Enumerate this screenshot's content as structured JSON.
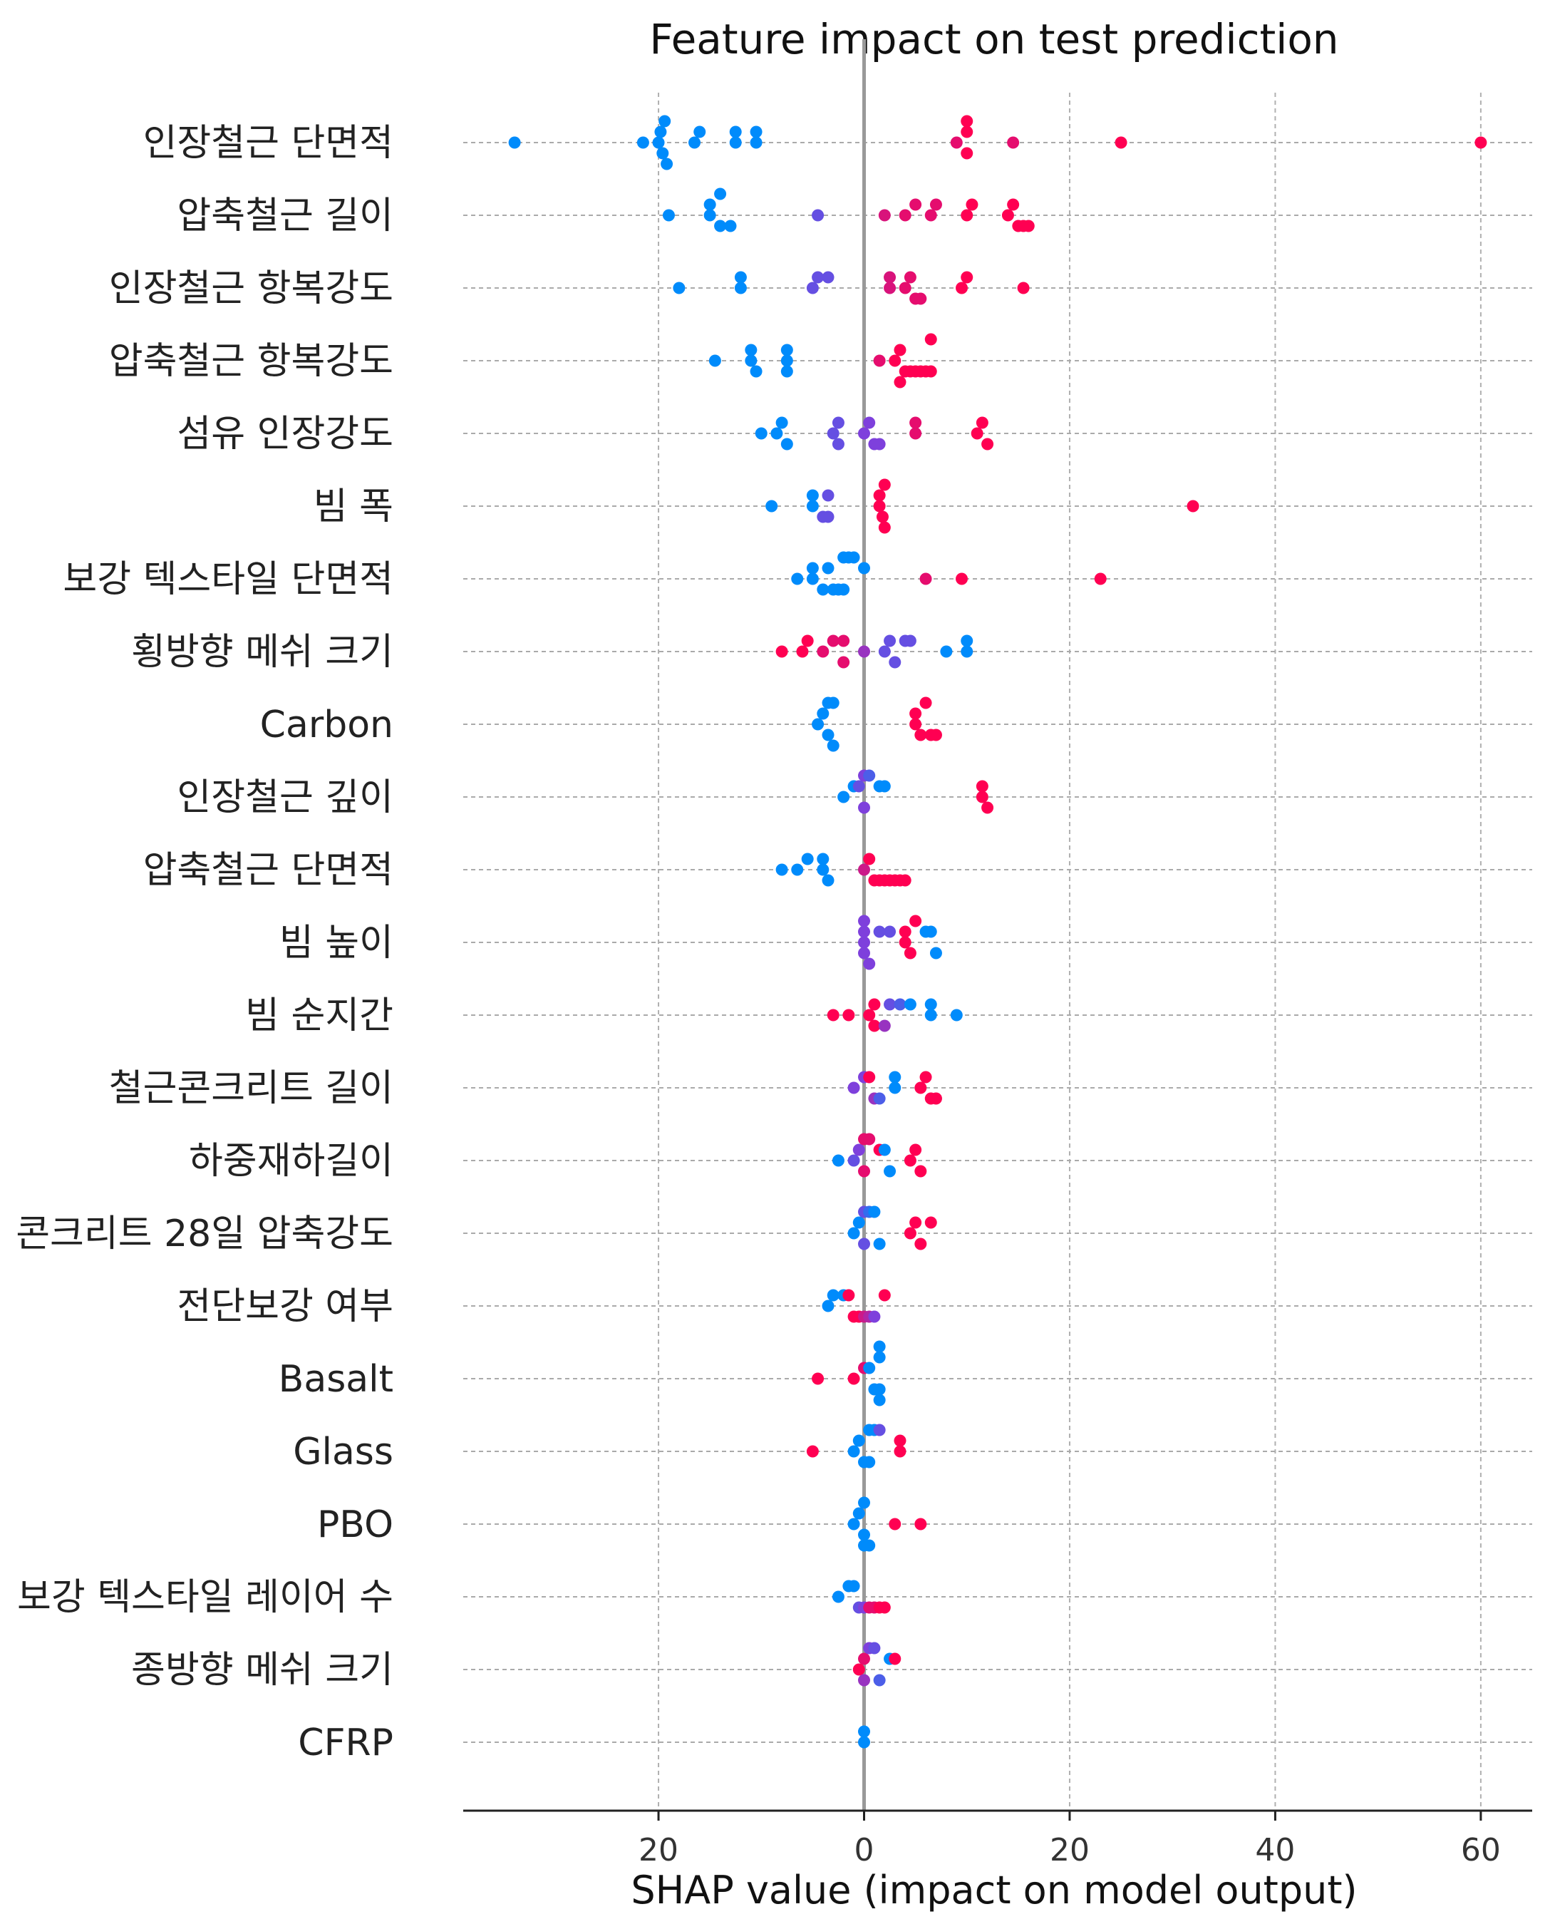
{
  "chart_data": {
    "type": "scatter",
    "title": "Feature impact on test prediction",
    "xlabel": "SHAP value (impact on model output)",
    "ylabel": "",
    "xlim": [
      -39,
      65
    ],
    "xticks": [
      {
        "value": -20,
        "label": "20"
      },
      {
        "value": 0,
        "label": "0"
      },
      {
        "value": 20,
        "label": "20"
      },
      {
        "value": 40,
        "label": "40"
      },
      {
        "value": 60,
        "label": "60"
      }
    ],
    "grid": "dashed horizontal row lines and vertical tick lines",
    "colors": {
      "low": "#008bfb",
      "high": "#ff0052",
      "zero_line": "#999999"
    },
    "features": [
      {
        "name": "인장철근 단면적",
        "points": [
          [
            -34,
            0
          ],
          [
            -21.5,
            0
          ],
          [
            -20,
            0
          ],
          [
            -19.8,
            0
          ],
          [
            -19.6,
            0
          ],
          [
            -19.4,
            0
          ],
          [
            -19.2,
            0
          ],
          [
            -16.5,
            0
          ],
          [
            -16,
            0
          ],
          [
            -12.5,
            0
          ],
          [
            -12.5,
            0
          ],
          [
            -10.5,
            0
          ],
          [
            -10.5,
            0
          ],
          [
            9,
            0.9
          ],
          [
            10,
            1
          ],
          [
            10,
            1
          ],
          [
            10,
            1
          ],
          [
            14.5,
            0.9
          ],
          [
            25,
            1
          ],
          [
            60,
            1
          ]
        ]
      },
      {
        "name": "압축철근 길이",
        "points": [
          [
            -19,
            0
          ],
          [
            -15,
            0
          ],
          [
            -15,
            0
          ],
          [
            -14,
            0
          ],
          [
            -14,
            0
          ],
          [
            -13,
            0
          ],
          [
            -4.5,
            0.4
          ],
          [
            2,
            0.85
          ],
          [
            4,
            0.9
          ],
          [
            5,
            0.9
          ],
          [
            6.5,
            0.9
          ],
          [
            7,
            0.9
          ],
          [
            10,
            1
          ],
          [
            10.5,
            1
          ],
          [
            14,
            1
          ],
          [
            14.5,
            1
          ],
          [
            15,
            1
          ],
          [
            15.5,
            1
          ],
          [
            16,
            1
          ]
        ]
      },
      {
        "name": "인장철근 항복강도",
        "points": [
          [
            -18,
            0
          ],
          [
            -12,
            0
          ],
          [
            -12,
            0
          ],
          [
            -5,
            0.4
          ],
          [
            -4.5,
            0.4
          ],
          [
            -3.5,
            0.4
          ],
          [
            2.5,
            0.85
          ],
          [
            2.5,
            0.85
          ],
          [
            4,
            0.9
          ],
          [
            4.5,
            0.9
          ],
          [
            5,
            0.9
          ],
          [
            5.5,
            0.9
          ],
          [
            9.5,
            1
          ],
          [
            10,
            1
          ],
          [
            15.5,
            1
          ]
        ]
      },
      {
        "name": "압축철근 항복강도",
        "points": [
          [
            -14.5,
            0
          ],
          [
            -11,
            0
          ],
          [
            -11,
            0
          ],
          [
            -10.5,
            0
          ],
          [
            -7.5,
            0
          ],
          [
            -7.5,
            0
          ],
          [
            -7.5,
            0
          ],
          [
            1.5,
            0.9
          ],
          [
            3,
            1
          ],
          [
            3.5,
            1
          ],
          [
            4,
            1
          ],
          [
            4.5,
            1
          ],
          [
            5,
            1
          ],
          [
            5.5,
            1
          ],
          [
            6,
            1
          ],
          [
            6.5,
            1
          ],
          [
            6.5,
            1
          ],
          [
            3.5,
            1
          ]
        ]
      },
      {
        "name": "섬유 인장강도",
        "points": [
          [
            -10,
            0
          ],
          [
            -8.5,
            0
          ],
          [
            -8,
            0
          ],
          [
            -7.5,
            0
          ],
          [
            -3,
            0.4
          ],
          [
            -2.5,
            0.4
          ],
          [
            -2.5,
            0.4
          ],
          [
            0,
            0.5
          ],
          [
            0.5,
            0.5
          ],
          [
            1,
            0.5
          ],
          [
            1.5,
            0.5
          ],
          [
            5,
            0.9
          ],
          [
            5,
            0.9
          ],
          [
            11,
            1
          ],
          [
            11.5,
            1
          ],
          [
            12,
            1
          ]
        ]
      },
      {
        "name": "빔 폭",
        "points": [
          [
            -9,
            0
          ],
          [
            -5,
            0
          ],
          [
            -5,
            0
          ],
          [
            -4,
            0.4
          ],
          [
            -3.5,
            0.4
          ],
          [
            -3.5,
            0.4
          ],
          [
            1.5,
            1
          ],
          [
            1.5,
            1
          ],
          [
            1.8,
            1
          ],
          [
            2,
            1
          ],
          [
            2,
            1
          ],
          [
            32,
            1
          ]
        ]
      },
      {
        "name": "보강 텍스타일 단면적",
        "points": [
          [
            -6.5,
            0
          ],
          [
            -5,
            0
          ],
          [
            -5,
            0
          ],
          [
            -4,
            0
          ],
          [
            -3.5,
            0
          ],
          [
            -3,
            0
          ],
          [
            -2.5,
            0
          ],
          [
            -2,
            0
          ],
          [
            -2,
            0
          ],
          [
            -1.5,
            0
          ],
          [
            -1,
            0
          ],
          [
            0,
            0
          ],
          [
            6,
            0.9
          ],
          [
            9.5,
            1
          ],
          [
            23,
            1
          ]
        ]
      },
      {
        "name": "횡방향 메쉬 크기",
        "points": [
          [
            -8,
            1
          ],
          [
            -6,
            1
          ],
          [
            -5.5,
            1
          ],
          [
            -4,
            0.9
          ],
          [
            -3,
            0.9
          ],
          [
            -2,
            0.9
          ],
          [
            -2,
            0.9
          ],
          [
            0,
            0.6
          ],
          [
            2,
            0.4
          ],
          [
            2.5,
            0.4
          ],
          [
            3,
            0.4
          ],
          [
            4,
            0.4
          ],
          [
            4.5,
            0.4
          ],
          [
            8,
            0
          ],
          [
            10,
            0
          ],
          [
            10,
            0
          ]
        ]
      },
      {
        "name": "Carbon",
        "points": [
          [
            -4.5,
            0
          ],
          [
            -4,
            0
          ],
          [
            -3.5,
            0
          ],
          [
            -3.5,
            0
          ],
          [
            -3,
            0
          ],
          [
            -3,
            0
          ],
          [
            5,
            1
          ],
          [
            5,
            1
          ],
          [
            5.5,
            1
          ],
          [
            6,
            1
          ],
          [
            6.5,
            1
          ],
          [
            7,
            1
          ]
        ]
      },
      {
        "name": "인장철근 깊이",
        "points": [
          [
            -2,
            0
          ],
          [
            -1,
            0
          ],
          [
            -0.5,
            0.4
          ],
          [
            0,
            0.5
          ],
          [
            0,
            0.5
          ],
          [
            0.5,
            0.3
          ],
          [
            1.5,
            0
          ],
          [
            2,
            0
          ],
          [
            11.5,
            1
          ],
          [
            11.5,
            1
          ],
          [
            12,
            1
          ]
        ]
      },
      {
        "name": "압축철근 단면적",
        "points": [
          [
            -8,
            0
          ],
          [
            -6.5,
            0
          ],
          [
            -5.5,
            0
          ],
          [
            -4,
            0
          ],
          [
            -4,
            0
          ],
          [
            -3.5,
            0
          ],
          [
            0,
            0.8
          ],
          [
            0.5,
            1
          ],
          [
            1,
            1
          ],
          [
            1.5,
            1
          ],
          [
            2,
            1
          ],
          [
            2.5,
            1
          ],
          [
            3,
            1
          ],
          [
            3.5,
            1
          ],
          [
            4,
            1
          ]
        ]
      },
      {
        "name": "빔 높이",
        "points": [
          [
            0,
            0.5
          ],
          [
            0,
            0.5
          ],
          [
            0,
            0.5
          ],
          [
            0,
            0.5
          ],
          [
            0.5,
            0.5
          ],
          [
            1.5,
            0.4
          ],
          [
            2.5,
            0.4
          ],
          [
            4,
            1
          ],
          [
            4,
            1
          ],
          [
            4.5,
            1
          ],
          [
            5,
            1
          ],
          [
            6,
            0
          ],
          [
            6.5,
            0
          ],
          [
            7,
            0
          ]
        ]
      },
      {
        "name": "빔 순지간",
        "points": [
          [
            -3,
            1
          ],
          [
            -1.5,
            1
          ],
          [
            0.5,
            1
          ],
          [
            1,
            1
          ],
          [
            1,
            1
          ],
          [
            2,
            0.6
          ],
          [
            2.5,
            0.4
          ],
          [
            3.5,
            0.3
          ],
          [
            4.5,
            0
          ],
          [
            6.5,
            0
          ],
          [
            6.5,
            0
          ],
          [
            9,
            0
          ]
        ]
      },
      {
        "name": "철근콘크리트 길이",
        "points": [
          [
            -1,
            0.5
          ],
          [
            0,
            0.5
          ],
          [
            0.5,
            1
          ],
          [
            1,
            0.6
          ],
          [
            1.5,
            0.3
          ],
          [
            3,
            0
          ],
          [
            3,
            0
          ],
          [
            5.5,
            1
          ],
          [
            6,
            1
          ],
          [
            6.5,
            1
          ],
          [
            7,
            1
          ]
        ]
      },
      {
        "name": "하중재하길이",
        "points": [
          [
            -2.5,
            0
          ],
          [
            -1,
            0.4
          ],
          [
            -0.5,
            0.5
          ],
          [
            0,
            0.9
          ],
          [
            0,
            0.9
          ],
          [
            0.5,
            0.9
          ],
          [
            1.5,
            1
          ],
          [
            2,
            0
          ],
          [
            2.5,
            0
          ],
          [
            4.5,
            1
          ],
          [
            5,
            1
          ],
          [
            5.5,
            1
          ]
        ]
      },
      {
        "name": "콘크리트 28일 압축강도",
        "points": [
          [
            -1,
            0
          ],
          [
            -0.5,
            0
          ],
          [
            0,
            0.4
          ],
          [
            0,
            0.4
          ],
          [
            0.5,
            0.2
          ],
          [
            1,
            0
          ],
          [
            1.5,
            0
          ],
          [
            4.5,
            1
          ],
          [
            5,
            1
          ],
          [
            5.5,
            1
          ],
          [
            6.5,
            1
          ]
        ]
      },
      {
        "name": "전단보강 여부",
        "points": [
          [
            -3.5,
            0
          ],
          [
            -3,
            0
          ],
          [
            -2,
            0
          ],
          [
            -1.5,
            1
          ],
          [
            -1,
            1
          ],
          [
            -0.5,
            1
          ],
          [
            0,
            0.8
          ],
          [
            0.5,
            0.7
          ],
          [
            1,
            0.5
          ],
          [
            2,
            1
          ]
        ]
      },
      {
        "name": "Basalt",
        "points": [
          [
            -4.5,
            1
          ],
          [
            -1,
            1
          ],
          [
            0,
            0.9
          ],
          [
            0.5,
            0
          ],
          [
            1,
            0
          ],
          [
            1.5,
            0
          ],
          [
            1.5,
            0
          ],
          [
            1.5,
            0
          ],
          [
            1.5,
            0
          ]
        ]
      },
      {
        "name": "Glass",
        "points": [
          [
            -5,
            1
          ],
          [
            -1,
            0
          ],
          [
            -0.5,
            0
          ],
          [
            0,
            0
          ],
          [
            0.5,
            0
          ],
          [
            0.5,
            0
          ],
          [
            1,
            0
          ],
          [
            1.5,
            0.4
          ],
          [
            3.5,
            1
          ],
          [
            3.5,
            1
          ]
        ]
      },
      {
        "name": "PBO",
        "points": [
          [
            -1,
            0
          ],
          [
            -0.5,
            0
          ],
          [
            0,
            0
          ],
          [
            0,
            0
          ],
          [
            0,
            0
          ],
          [
            0.5,
            0
          ],
          [
            3,
            1
          ],
          [
            5.5,
            1
          ]
        ]
      },
      {
        "name": "보강 텍스타일 레이어 수",
        "points": [
          [
            -2.5,
            0
          ],
          [
            -1.5,
            0
          ],
          [
            -1,
            0
          ],
          [
            -0.5,
            0.4
          ],
          [
            0,
            0.5
          ],
          [
            0.5,
            0.9
          ],
          [
            1,
            0.9
          ],
          [
            1.5,
            1
          ],
          [
            2,
            1
          ]
        ]
      },
      {
        "name": "종방향 메쉬 크기",
        "points": [
          [
            -0.5,
            1
          ],
          [
            0,
            0.9
          ],
          [
            0,
            0.6
          ],
          [
            0.5,
            0.5
          ],
          [
            1,
            0.4
          ],
          [
            1.5,
            0.3
          ],
          [
            2.5,
            0
          ],
          [
            3,
            1
          ]
        ]
      },
      {
        "name": "CFRP",
        "points": [
          [
            0,
            0
          ],
          [
            0,
            0
          ]
        ]
      }
    ]
  }
}
